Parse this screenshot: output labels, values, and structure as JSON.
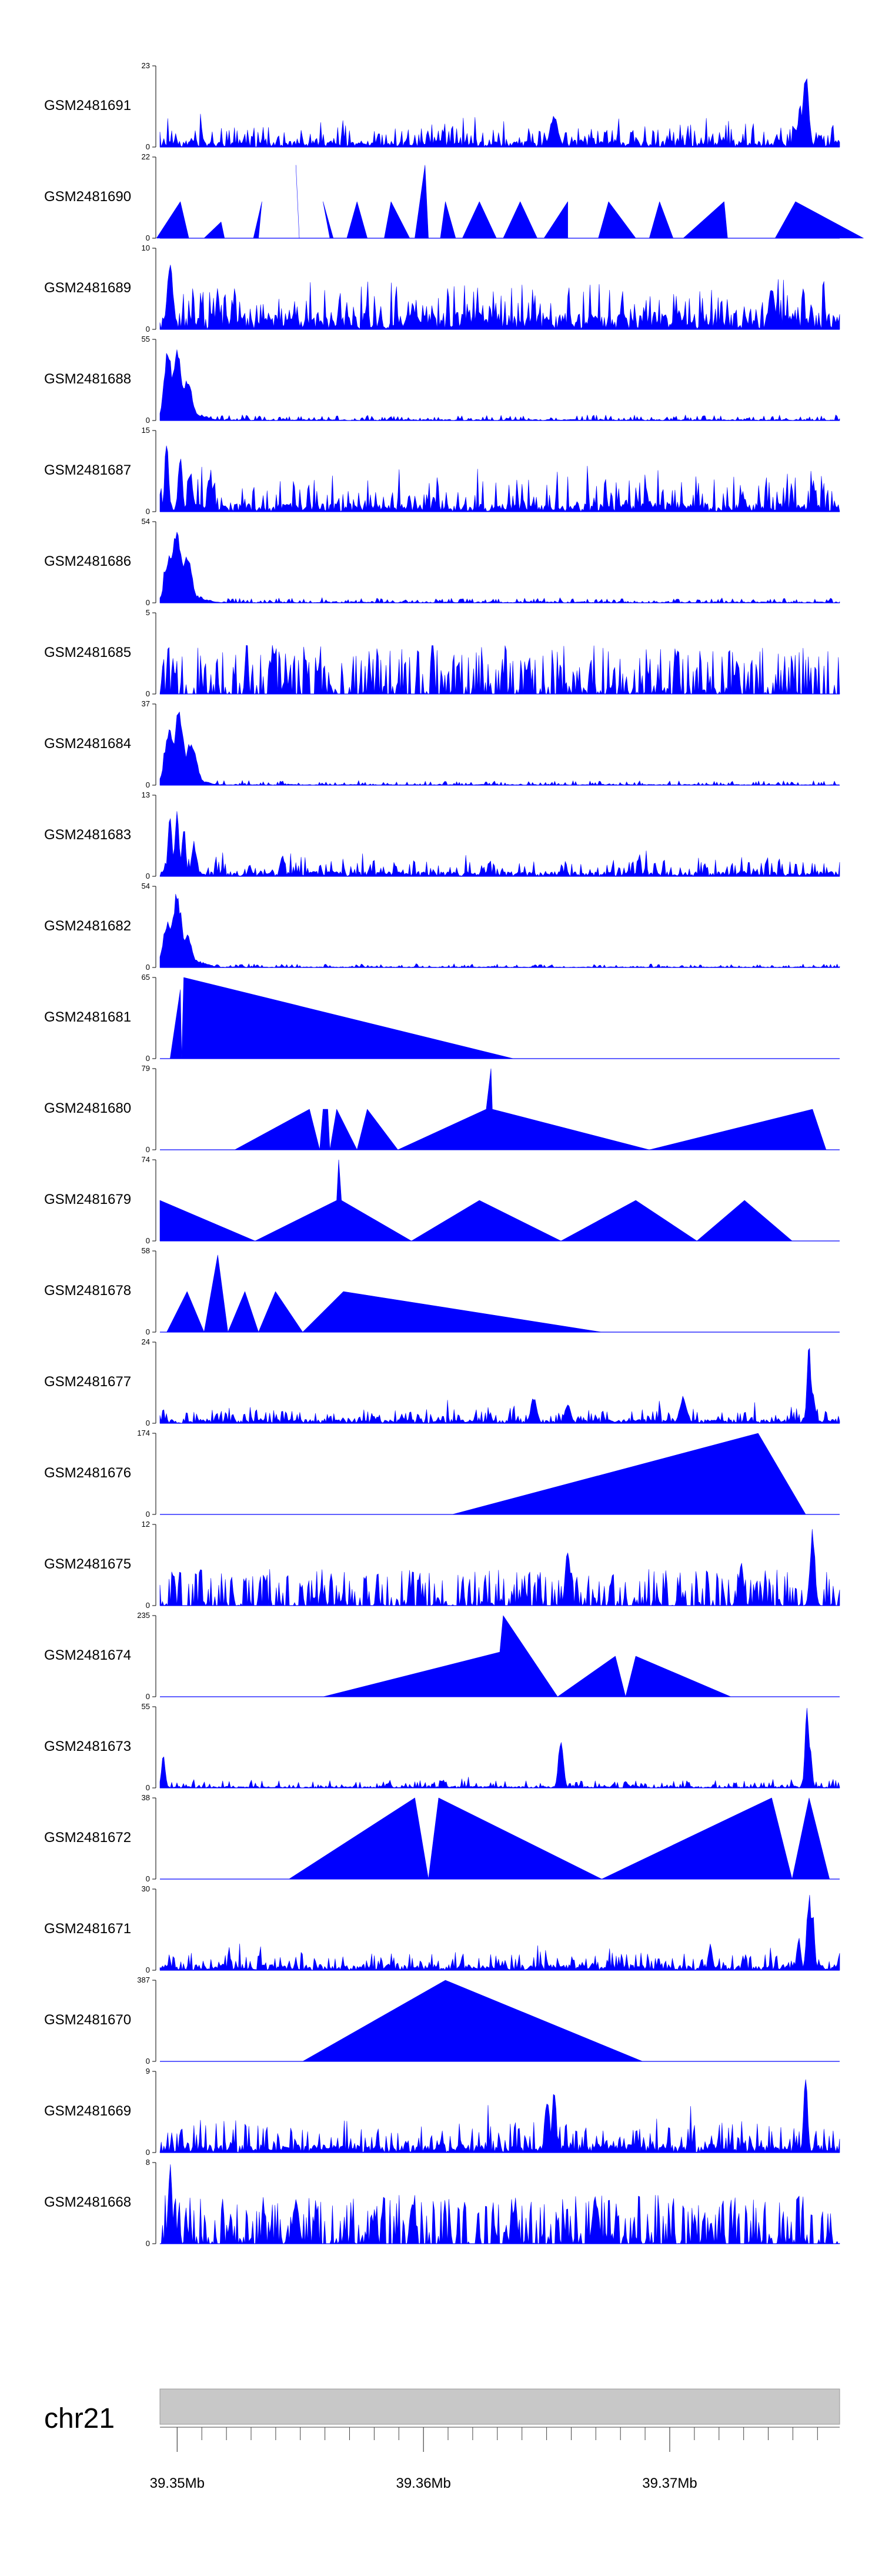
{
  "chart_data": {
    "type": "area",
    "title": "",
    "chromosome": "chr21",
    "genome_axis": {
      "range_mb": [
        39.3493,
        39.3769
      ],
      "major_ticks_mb": [
        39.35,
        39.36,
        39.37
      ],
      "major_labels": [
        "39.35Mb",
        "39.36Mb",
        "39.37Mb"
      ],
      "minor_ticks_mb": [
        39.351,
        39.352,
        39.353,
        39.354,
        39.355,
        39.356,
        39.357,
        39.358,
        39.359,
        39.361,
        39.362,
        39.363,
        39.364,
        39.365,
        39.366,
        39.367,
        39.368,
        39.369,
        39.371,
        39.372,
        39.373,
        39.374,
        39.375,
        39.376
      ],
      "ideogram_color": "#c8c8c8"
    },
    "series_color": "#0000ff",
    "tracks": [
      {
        "name": "GSM2481691",
        "ymax": 23,
        "pattern": "noise",
        "baseline": 0.08,
        "spread": 0.22,
        "peaks": [
          [
            0.58,
            0.42,
            0.008
          ],
          [
            0.95,
            1.0,
            0.006
          ],
          [
            0.942,
            0.55,
            0.005
          ]
        ],
        "xrange": [
          0.0,
          1.0
        ]
      },
      {
        "name": "GSM2481690",
        "ymax": 22,
        "pattern": "sparse",
        "spikes": [
          [
            0.03,
            0.07,
            0.45
          ],
          [
            0.09,
            0.095,
            0.2
          ],
          [
            0.15,
            0.11,
            0.45
          ],
          [
            0.2,
            0.11,
            0.9
          ],
          [
            0.24,
            0.07,
            0.45
          ],
          [
            0.29,
            0.08,
            0.45
          ],
          [
            0.34,
            0.07,
            0.45
          ],
          [
            0.39,
            0.045,
            0.9
          ],
          [
            0.42,
            0.05,
            0.45
          ],
          [
            0.47,
            0.07,
            0.45
          ],
          [
            0.53,
            0.07,
            0.45
          ],
          [
            0.6,
            0.09,
            0.45
          ],
          [
            0.66,
            0.12,
            0.45
          ],
          [
            0.735,
            0.07,
            0.45
          ],
          [
            0.83,
            0.15,
            0.45
          ],
          [
            0.935,
            0.2,
            0.45
          ]
        ],
        "xrange": [
          0.02,
          0.91
        ]
      },
      {
        "name": "GSM2481689",
        "ymax": 10,
        "pattern": "noise",
        "baseline": 0.2,
        "spread": 0.42,
        "peaks": [
          [
            0.015,
            0.9,
            0.006
          ],
          [
            0.9,
            0.55,
            0.006
          ]
        ],
        "xrange": [
          0.0,
          1.0
        ]
      },
      {
        "name": "GSM2481688",
        "ymax": 55,
        "pattern": "decay",
        "baseline": 0.015,
        "spread": 0.06,
        "peaks": [
          [
            0.012,
            0.95,
            0.008
          ],
          [
            0.025,
            0.9,
            0.01
          ],
          [
            0.04,
            0.55,
            0.01
          ]
        ],
        "xrange": [
          0.0,
          1.0
        ]
      },
      {
        "name": "GSM2481687",
        "ymax": 15,
        "pattern": "noise",
        "baseline": 0.1,
        "spread": 0.35,
        "peaks": [
          [
            0.01,
            0.95,
            0.004
          ],
          [
            0.03,
            0.8,
            0.004
          ],
          [
            0.045,
            0.5,
            0.005
          ]
        ],
        "xrange": [
          0.0,
          1.0
        ]
      },
      {
        "name": "GSM2481686",
        "ymax": 54,
        "pattern": "decay",
        "baseline": 0.015,
        "spread": 0.05,
        "peaks": [
          [
            0.015,
            0.6,
            0.01
          ],
          [
            0.025,
            0.95,
            0.01
          ],
          [
            0.04,
            0.6,
            0.01
          ]
        ],
        "xrange": [
          0.0,
          1.0
        ]
      },
      {
        "name": "GSM2481685",
        "ymax": 5,
        "pattern": "spiky",
        "baseline": 0.0,
        "spread": 0.6,
        "peaks": [],
        "xrange": [
          0.0,
          1.0
        ]
      },
      {
        "name": "GSM2481684",
        "ymax": 37,
        "pattern": "decay",
        "baseline": 0.01,
        "spread": 0.05,
        "peaks": [
          [
            0.015,
            0.75,
            0.01
          ],
          [
            0.028,
            0.95,
            0.01
          ],
          [
            0.045,
            0.55,
            0.012
          ]
        ],
        "xrange": [
          0.0,
          1.0
        ]
      },
      {
        "name": "GSM2481683",
        "ymax": 13,
        "pattern": "noise",
        "baseline": 0.06,
        "spread": 0.18,
        "peaks": [
          [
            0.015,
            0.85,
            0.004
          ],
          [
            0.025,
            0.9,
            0.004
          ],
          [
            0.035,
            0.65,
            0.004
          ],
          [
            0.05,
            0.45,
            0.005
          ],
          [
            0.18,
            0.3,
            0.004
          ]
        ],
        "xrange": [
          0.0,
          1.0
        ]
      },
      {
        "name": "GSM2481682",
        "ymax": 54,
        "pattern": "decay",
        "baseline": 0.01,
        "spread": 0.04,
        "peaks": [
          [
            0.012,
            0.6,
            0.01
          ],
          [
            0.025,
            0.95,
            0.01
          ],
          [
            0.04,
            0.45,
            0.01
          ]
        ],
        "xrange": [
          0.0,
          1.0
        ]
      },
      {
        "name": "GSM2481681",
        "ymax": 65,
        "pattern": "polyline",
        "points": [
          [
            0.015,
            0.0
          ],
          [
            0.03,
            0.85
          ],
          [
            0.032,
            0.0
          ],
          [
            0.035,
            1.0
          ],
          [
            0.52,
            0.0
          ]
        ]
      },
      {
        "name": "GSM2481680",
        "ymax": 79,
        "pattern": "polyline",
        "points": [
          [
            0.11,
            0.0
          ],
          [
            0.22,
            0.5
          ],
          [
            0.235,
            0.0
          ],
          [
            0.24,
            0.5
          ],
          [
            0.247,
            0.5
          ],
          [
            0.25,
            0.0
          ],
          [
            0.26,
            0.5
          ],
          [
            0.29,
            0.0
          ],
          [
            0.305,
            0.5
          ],
          [
            0.35,
            0.0
          ],
          [
            0.48,
            0.5
          ],
          [
            0.487,
            1.0
          ],
          [
            0.489,
            0.5
          ],
          [
            0.72,
            0.0
          ],
          [
            0.96,
            0.5
          ],
          [
            0.98,
            0.0
          ]
        ]
      },
      {
        "name": "GSM2481679",
        "ymax": 74,
        "pattern": "polyline",
        "points": [
          [
            0.0,
            0.5
          ],
          [
            0.14,
            0.0
          ],
          [
            0.26,
            0.5
          ],
          [
            0.263,
            1.0
          ],
          [
            0.267,
            0.5
          ],
          [
            0.37,
            0.0
          ],
          [
            0.47,
            0.5
          ],
          [
            0.59,
            0.0
          ],
          [
            0.7,
            0.5
          ],
          [
            0.79,
            0.0
          ],
          [
            0.86,
            0.5
          ],
          [
            0.93,
            0.0
          ]
        ]
      },
      {
        "name": "GSM2481678",
        "ymax": 58,
        "pattern": "polyline",
        "points": [
          [
            0.01,
            0.0
          ],
          [
            0.04,
            0.5
          ],
          [
            0.065,
            0.0
          ],
          [
            0.085,
            0.95
          ],
          [
            0.1,
            0.0
          ],
          [
            0.125,
            0.5
          ],
          [
            0.145,
            0.0
          ],
          [
            0.17,
            0.5
          ],
          [
            0.21,
            0.0
          ],
          [
            0.27,
            0.5
          ],
          [
            0.65,
            0.0
          ]
        ]
      },
      {
        "name": "GSM2481677",
        "ymax": 24,
        "pattern": "noise",
        "baseline": 0.05,
        "spread": 0.15,
        "peaks": [
          [
            0.55,
            0.35,
            0.006
          ],
          [
            0.6,
            0.25,
            0.006
          ],
          [
            0.77,
            0.35,
            0.007
          ],
          [
            0.955,
            1.0,
            0.004
          ],
          [
            0.96,
            0.45,
            0.005
          ]
        ],
        "xrange": [
          0.0,
          1.0
        ]
      },
      {
        "name": "GSM2481676",
        "ymax": 174,
        "pattern": "polyline",
        "points": [
          [
            0.43,
            0.0
          ],
          [
            0.88,
            1.0
          ],
          [
            0.95,
            0.0
          ]
        ]
      },
      {
        "name": "GSM2481675",
        "ymax": 12,
        "pattern": "spiky",
        "baseline": 0.0,
        "spread": 0.45,
        "peaks": [
          [
            0.6,
            0.75,
            0.005
          ],
          [
            0.855,
            0.55,
            0.005
          ],
          [
            0.96,
            1.0,
            0.005
          ]
        ],
        "xrange": [
          0.0,
          1.0
        ]
      },
      {
        "name": "GSM2481674",
        "ymax": 235,
        "pattern": "polyline",
        "points": [
          [
            0.24,
            0.0
          ],
          [
            0.5,
            0.55
          ],
          [
            0.505,
            1.0
          ],
          [
            0.585,
            0.0
          ],
          [
            0.67,
            0.5
          ],
          [
            0.685,
            0.0
          ],
          [
            0.7,
            0.5
          ],
          [
            0.84,
            0.0
          ]
        ]
      },
      {
        "name": "GSM2481673",
        "ymax": 55,
        "pattern": "noise",
        "baseline": 0.02,
        "spread": 0.08,
        "peaks": [
          [
            0.005,
            0.4,
            0.004
          ],
          [
            0.59,
            0.65,
            0.005
          ],
          [
            0.952,
            1.0,
            0.004
          ],
          [
            0.956,
            0.6,
            0.004
          ]
        ],
        "xrange": [
          0.0,
          1.0
        ]
      },
      {
        "name": "GSM2481672",
        "ymax": 38,
        "pattern": "polyline",
        "points": [
          [
            0.19,
            0.0
          ],
          [
            0.375,
            1.0
          ],
          [
            0.395,
            0.0
          ],
          [
            0.41,
            1.0
          ],
          [
            0.65,
            0.0
          ],
          [
            0.9,
            1.0
          ],
          [
            0.93,
            0.0
          ],
          [
            0.955,
            1.0
          ],
          [
            0.985,
            0.0
          ]
        ]
      },
      {
        "name": "GSM2481671",
        "ymax": 30,
        "pattern": "noise",
        "baseline": 0.07,
        "spread": 0.16,
        "peaks": [
          [
            0.81,
            0.35,
            0.004
          ],
          [
            0.955,
            0.95,
            0.005
          ],
          [
            0.96,
            0.8,
            0.004
          ],
          [
            0.94,
            0.45,
            0.004
          ]
        ],
        "xrange": [
          0.0,
          1.0
        ]
      },
      {
        "name": "GSM2481670",
        "ymax": 387,
        "pattern": "polyline",
        "points": [
          [
            0.21,
            0.0
          ],
          [
            0.42,
            1.0
          ],
          [
            0.71,
            0.0
          ]
        ]
      },
      {
        "name": "GSM2481669",
        "ymax": 9,
        "pattern": "noise",
        "baseline": 0.1,
        "spread": 0.3,
        "peaks": [
          [
            0.57,
            0.7,
            0.005
          ],
          [
            0.58,
            0.85,
            0.004
          ],
          [
            0.95,
            1.0,
            0.004
          ]
        ],
        "xrange": [
          0.0,
          1.0
        ]
      },
      {
        "name": "GSM2481668",
        "ymax": 8,
        "pattern": "spiky",
        "baseline": 0.0,
        "spread": 0.6,
        "peaks": [
          [
            0.015,
            1.0,
            0.004
          ],
          [
            0.2,
            0.6,
            0.006
          ],
          [
            0.64,
            0.7,
            0.005
          ]
        ],
        "xrange": [
          0.0,
          1.0
        ]
      }
    ]
  }
}
